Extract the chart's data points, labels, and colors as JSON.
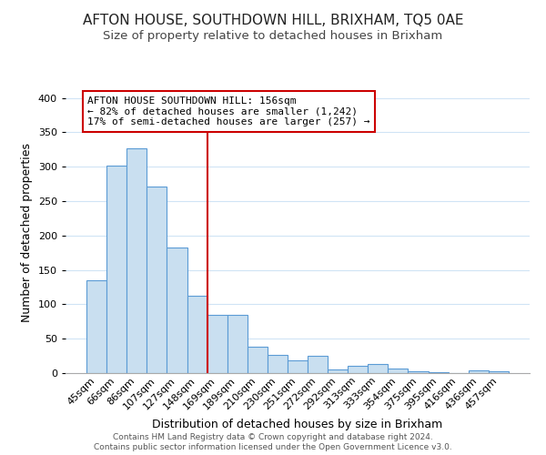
{
  "title": "AFTON HOUSE, SOUTHDOWN HILL, BRIXHAM, TQ5 0AE",
  "subtitle": "Size of property relative to detached houses in Brixham",
  "xlabel": "Distribution of detached houses by size in Brixham",
  "ylabel": "Number of detached properties",
  "categories": [
    "45sqm",
    "66sqm",
    "86sqm",
    "107sqm",
    "127sqm",
    "148sqm",
    "169sqm",
    "189sqm",
    "210sqm",
    "230sqm",
    "251sqm",
    "272sqm",
    "292sqm",
    "313sqm",
    "333sqm",
    "354sqm",
    "375sqm",
    "395sqm",
    "416sqm",
    "436sqm",
    "457sqm"
  ],
  "values": [
    135,
    302,
    327,
    271,
    183,
    113,
    84,
    84,
    38,
    27,
    18,
    25,
    5,
    11,
    13,
    6,
    2,
    1,
    0,
    4,
    3
  ],
  "bar_color": "#c9dff0",
  "bar_edge_color": "#5b9bd5",
  "grid_color": "#d0e4f5",
  "vline_color": "#cc0000",
  "vline_x_index": 5.5,
  "annotation_title": "AFTON HOUSE SOUTHDOWN HILL: 156sqm",
  "annotation_line1": "← 82% of detached houses are smaller (1,242)",
  "annotation_line2": "17% of semi-detached houses are larger (257) →",
  "annotation_box_color": "#ffffff",
  "annotation_box_edge": "#cc0000",
  "ylim": [
    0,
    410
  ],
  "yticks": [
    0,
    50,
    100,
    150,
    200,
    250,
    300,
    350,
    400
  ],
  "footer1": "Contains HM Land Registry data © Crown copyright and database right 2024.",
  "footer2": "Contains public sector information licensed under the Open Government Licence v3.0.",
  "title_fontsize": 11,
  "subtitle_fontsize": 9.5,
  "axis_label_fontsize": 9,
  "tick_fontsize": 8,
  "annotation_fontsize": 8,
  "footer_fontsize": 6.5,
  "background_color": "#ffffff"
}
